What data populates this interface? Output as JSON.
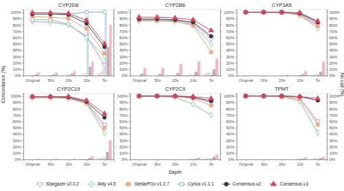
{
  "chart_data": [
    {
      "type": "line",
      "title": "CYP2D6",
      "x_label": "Depth",
      "y_label": "Concordance (%)",
      "y2_label": "No call (%)",
      "legend": "bottom",
      "categories": [
        "Original",
        "30x",
        "20x",
        "10x",
        "5x"
      ],
      "ylim": [
        0,
        104
      ],
      "yticks": [
        {
          "value": 0,
          "label": "0%"
        },
        {
          "value": 10,
          "label": "10%"
        },
        {
          "value": 20,
          "label": "20%"
        },
        {
          "value": 30,
          "label": "30%"
        },
        {
          "value": 40,
          "label": "40%"
        },
        {
          "value": 50,
          "label": "50%"
        },
        {
          "value": 60,
          "label": "60%"
        },
        {
          "value": 70,
          "label": "70%"
        },
        {
          "value": 80,
          "label": "80%"
        },
        {
          "value": 90,
          "label": "90%"
        },
        {
          "value": 100,
          "label": "100%"
        }
      ],
      "y2lim": [
        0,
        104
      ],
      "y2ticks": [
        0,
        10,
        20,
        30,
        40,
        50,
        60,
        70,
        80,
        90,
        100
      ],
      "series": [
        {
          "name": "Stargazer v2.0.2",
          "color": "#b98fd8",
          "marker": "triangle-down-open",
          "values": [
            85,
            84,
            80,
            62,
            17
          ],
          "no_call": [
            0,
            0,
            0,
            1,
            3
          ]
        },
        {
          "name": "Aldy v4.5",
          "color": "#72c99e",
          "marker": "diamond-open",
          "values": [
            88,
            88,
            81,
            60,
            30
          ],
          "no_call": [
            0,
            0,
            0,
            2,
            6
          ]
        },
        {
          "name": "StellarPGx v1.2.7",
          "color": "#f2a07b",
          "marker": "x",
          "values": [
            93,
            92,
            90,
            74,
            35
          ],
          "no_call": [
            1,
            1,
            2,
            4,
            12
          ]
        },
        {
          "name": "Cyrius v1.1.1",
          "color": "#74a9cf",
          "marker": "square-open",
          "values": [
            97,
            97,
            97,
            100,
            100
          ],
          "no_call": [
            1,
            1,
            2,
            95,
            98
          ]
        },
        {
          "name": "Consensus ≥2",
          "color": "#3b3b3b",
          "marker": "circle",
          "values": [
            97,
            97,
            96,
            82,
            45
          ],
          "no_call": [
            2,
            2,
            3,
            14,
            45
          ]
        },
        {
          "name": "Consensus ≥3",
          "color": "#e0405e",
          "marker": "triangle",
          "values": [
            99,
            99,
            98,
            87,
            50
          ],
          "no_call": [
            5,
            5,
            7,
            22,
            80
          ]
        }
      ]
    },
    {
      "type": "line",
      "title": "CYP2B6",
      "categories": [
        "Original",
        "30x",
        "20x",
        "10x",
        "5x"
      ],
      "ylim": [
        0,
        104
      ],
      "yticks": [
        {
          "value": 0,
          "label": "0%"
        },
        {
          "value": 10,
          "label": "10%"
        },
        {
          "value": 20,
          "label": "20%"
        },
        {
          "value": 30,
          "label": "30%"
        },
        {
          "value": 40,
          "label": "40%"
        },
        {
          "value": 50,
          "label": "50%"
        },
        {
          "value": 60,
          "label": "60%"
        },
        {
          "value": 70,
          "label": "70%"
        },
        {
          "value": 80,
          "label": "80%"
        },
        {
          "value": 90,
          "label": "90%"
        },
        {
          "value": 100,
          "label": "100%"
        }
      ],
      "y2lim": [
        0,
        104
      ],
      "y2ticks": [
        0,
        10,
        20,
        30,
        40,
        50,
        60,
        70,
        80,
        90,
        100
      ],
      "series": [
        {
          "name": "Stargazer v2.0.2",
          "color": "#b98fd8",
          "marker": "triangle-down-open",
          "values": [
            88,
            88,
            87,
            82,
            58
          ],
          "no_call": [
            0,
            0,
            0,
            1,
            3
          ]
        },
        {
          "name": "Aldy v4.5",
          "color": "#72c99e",
          "marker": "diamond-open",
          "values": [
            86,
            86,
            85,
            80,
            50
          ],
          "no_call": [
            0,
            0,
            1,
            2,
            5
          ]
        },
        {
          "name": "StellarPGx v1.2.7",
          "color": "#f2a07b",
          "marker": "x",
          "values": [
            87,
            87,
            86,
            79,
            37
          ],
          "no_call": [
            0,
            0,
            1,
            2,
            4
          ]
        },
        {
          "name": "Consensus ≥2",
          "color": "#3b3b3b",
          "marker": "circle",
          "values": [
            89,
            89,
            88,
            84,
            62
          ],
          "no_call": [
            3,
            3,
            4,
            6,
            10
          ]
        },
        {
          "name": "Consensus ≥3",
          "color": "#e0405e",
          "marker": "triangle",
          "values": [
            92,
            92,
            91,
            88,
            71
          ],
          "no_call": [
            12,
            12,
            18,
            22,
            27
          ]
        }
      ]
    },
    {
      "type": "line",
      "title": "CYP3A5",
      "categories": [
        "Original",
        "30x",
        "20x",
        "10x",
        "5x"
      ],
      "ylim": [
        0,
        104
      ],
      "yticks": [
        {
          "value": 0,
          "label": "0%"
        },
        {
          "value": 10,
          "label": "10%"
        },
        {
          "value": 20,
          "label": "20%"
        },
        {
          "value": 30,
          "label": "30%"
        },
        {
          "value": 40,
          "label": "40%"
        },
        {
          "value": 50,
          "label": "50%"
        },
        {
          "value": 60,
          "label": "60%"
        },
        {
          "value": 70,
          "label": "70%"
        },
        {
          "value": 80,
          "label": "80%"
        },
        {
          "value": 90,
          "label": "90%"
        },
        {
          "value": 100,
          "label": "100%"
        }
      ],
      "y2lim": [
        0,
        104
      ],
      "y2ticks": [
        {
          "value": 0,
          "label": "0%"
        },
        {
          "value": 10,
          "label": "10%"
        },
        {
          "value": 20,
          "label": "20%"
        },
        {
          "value": 30,
          "label": "30%"
        },
        {
          "value": 40,
          "label": "40%"
        },
        {
          "value": 50,
          "label": "50%"
        },
        {
          "value": 60,
          "label": "60%"
        },
        {
          "value": 70,
          "label": "70%"
        },
        {
          "value": 80,
          "label": "80%"
        },
        {
          "value": 90,
          "label": "90%"
        },
        {
          "value": 100,
          "label": "100%"
        }
      ],
      "series": [
        {
          "name": "Stargazer v2.0.2",
          "color": "#b98fd8",
          "marker": "triangle-down-open",
          "values": [
            100,
            100,
            100,
            97,
            80
          ],
          "no_call": [
            0,
            0,
            0,
            0,
            1
          ]
        },
        {
          "name": "Aldy v4.5",
          "color": "#72c99e",
          "marker": "diamond-open",
          "values": [
            100,
            100,
            100,
            95,
            75
          ],
          "no_call": [
            0,
            0,
            0,
            1,
            2
          ]
        },
        {
          "name": "StellarPGx v1.2.7",
          "color": "#f2a07b",
          "marker": "x",
          "values": [
            100,
            100,
            99,
            96,
            78
          ],
          "no_call": [
            0,
            0,
            0,
            1,
            3
          ]
        },
        {
          "name": "Consensus ≥2",
          "color": "#3b3b3b",
          "marker": "circle",
          "values": [
            100,
            100,
            100,
            98,
            84
          ],
          "no_call": [
            0,
            0,
            0,
            2,
            6
          ]
        },
        {
          "name": "Consensus ≥3",
          "color": "#e0405e",
          "marker": "triangle",
          "values": [
            100,
            100,
            100,
            99,
            86
          ],
          "no_call": [
            0,
            0,
            1,
            7,
            22
          ]
        }
      ]
    },
    {
      "type": "line",
      "title": "CYP2C19",
      "categories": [
        "Original",
        "30x",
        "20x",
        "10x",
        "5x"
      ],
      "ylim": [
        0,
        104
      ],
      "yticks": [
        {
          "value": 0,
          "label": "0%"
        },
        {
          "value": 10,
          "label": "10%"
        },
        {
          "value": 20,
          "label": "20%"
        },
        {
          "value": 30,
          "label": "30%"
        },
        {
          "value": 40,
          "label": "40%"
        },
        {
          "value": 50,
          "label": "50%"
        },
        {
          "value": 60,
          "label": "60%"
        },
        {
          "value": 70,
          "label": "70%"
        },
        {
          "value": 80,
          "label": "80%"
        },
        {
          "value": 90,
          "label": "90%"
        },
        {
          "value": 100,
          "label": "100%"
        }
      ],
      "y2lim": [
        0,
        104
      ],
      "y2ticks": [
        0,
        10,
        20,
        30,
        40,
        50,
        60,
        70,
        80,
        90,
        100
      ],
      "series": [
        {
          "name": "Stargazer v2.0.2",
          "color": "#b98fd8",
          "marker": "triangle-down-open",
          "values": [
            98,
            98,
            97,
            90,
            55
          ],
          "no_call": [
            0,
            0,
            0,
            1,
            2
          ]
        },
        {
          "name": "Aldy v4.5",
          "color": "#72c99e",
          "marker": "diamond-open",
          "values": [
            97,
            97,
            96,
            88,
            42
          ],
          "no_call": [
            0,
            0,
            0,
            1,
            3
          ]
        },
        {
          "name": "StellarPGx v1.2.7",
          "color": "#f2a07b",
          "marker": "x",
          "values": [
            98,
            98,
            97,
            89,
            50
          ],
          "no_call": [
            0,
            0,
            0,
            1,
            4
          ]
        },
        {
          "name": "Consensus ≥2",
          "color": "#3b3b3b",
          "marker": "circle",
          "values": [
            99,
            99,
            98,
            91,
            66
          ],
          "no_call": [
            0,
            0,
            0,
            2,
            12
          ]
        },
        {
          "name": "Consensus ≥3",
          "color": "#e0405e",
          "marker": "triangle",
          "values": [
            99,
            99,
            99,
            93,
            72
          ],
          "no_call": [
            1,
            1,
            1,
            5,
            30
          ]
        }
      ]
    },
    {
      "type": "line",
      "title": "CYP2C9",
      "categories": [
        "Original",
        "30x",
        "20x",
        "10x",
        "5x"
      ],
      "ylim": [
        0,
        104
      ],
      "yticks": [
        {
          "value": 0,
          "label": "0%"
        },
        {
          "value": 10,
          "label": "10%"
        },
        {
          "value": 20,
          "label": "20%"
        },
        {
          "value": 30,
          "label": "30%"
        },
        {
          "value": 40,
          "label": "40%"
        },
        {
          "value": 50,
          "label": "50%"
        },
        {
          "value": 60,
          "label": "60%"
        },
        {
          "value": 70,
          "label": "70%"
        },
        {
          "value": 80,
          "label": "80%"
        },
        {
          "value": 90,
          "label": "90%"
        },
        {
          "value": 100,
          "label": "100%"
        }
      ],
      "y2lim": [
        0,
        104
      ],
      "y2ticks": [
        0,
        10,
        20,
        30,
        40,
        50,
        60,
        70,
        80,
        90,
        100
      ],
      "series": [
        {
          "name": "Stargazer v2.0.2",
          "color": "#b98fd8",
          "marker": "triangle-down-open",
          "values": [
            100,
            100,
            99,
            97,
            90
          ],
          "no_call": [
            0,
            0,
            0,
            0,
            1
          ]
        },
        {
          "name": "Aldy v4.5",
          "color": "#72c99e",
          "marker": "diamond-open",
          "values": [
            99,
            99,
            98,
            87,
            70
          ],
          "no_call": [
            0,
            0,
            0,
            1,
            2
          ]
        },
        {
          "name": "StellarPGx v1.2.7",
          "color": "#f2a07b",
          "marker": "x",
          "values": [
            100,
            100,
            99,
            96,
            85
          ],
          "no_call": [
            0,
            0,
            0,
            1,
            2
          ]
        },
        {
          "name": "Consensus ≥2",
          "color": "#3b3b3b",
          "marker": "circle",
          "values": [
            100,
            100,
            100,
            98,
            92
          ],
          "no_call": [
            0,
            0,
            0,
            1,
            4
          ]
        },
        {
          "name": "Consensus ≥3",
          "color": "#e0405e",
          "marker": "triangle",
          "values": [
            100,
            100,
            100,
            99,
            96
          ],
          "no_call": [
            0,
            0,
            0,
            3,
            8
          ]
        }
      ]
    },
    {
      "type": "line",
      "title": "TPMT",
      "categories": [
        "Original",
        "30x",
        "20x",
        "10x",
        "5x"
      ],
      "ylim": [
        0,
        104
      ],
      "yticks": [
        {
          "value": 0,
          "label": "0%"
        },
        {
          "value": 10,
          "label": "10%"
        },
        {
          "value": 20,
          "label": "20%"
        },
        {
          "value": 30,
          "label": "30%"
        },
        {
          "value": 40,
          "label": "40%"
        },
        {
          "value": 50,
          "label": "50%"
        },
        {
          "value": 60,
          "label": "60%"
        },
        {
          "value": 70,
          "label": "70%"
        },
        {
          "value": 80,
          "label": "80%"
        },
        {
          "value": 90,
          "label": "90%"
        },
        {
          "value": 100,
          "label": "100%"
        }
      ],
      "y2lim": [
        0,
        104
      ],
      "y2ticks": [
        {
          "value": 0,
          "label": "0%"
        },
        {
          "value": 10,
          "label": "10%"
        },
        {
          "value": 20,
          "label": "20%"
        },
        {
          "value": 30,
          "label": "30%"
        },
        {
          "value": 40,
          "label": "40%"
        },
        {
          "value": 50,
          "label": "50%"
        },
        {
          "value": 60,
          "label": "60%"
        },
        {
          "value": 70,
          "label": "70%"
        },
        {
          "value": 80,
          "label": "80%"
        },
        {
          "value": 90,
          "label": "90%"
        },
        {
          "value": 100,
          "label": "100%"
        }
      ],
      "series": [
        {
          "name": "Stargazer v2.0.2",
          "color": "#b98fd8",
          "marker": "triangle-down-open",
          "values": [
            100,
            100,
            100,
            97,
            60
          ],
          "no_call": [
            0,
            0,
            0,
            0,
            1
          ]
        },
        {
          "name": "Aldy v4.5",
          "color": "#72c99e",
          "marker": "diamond-open",
          "values": [
            100,
            100,
            99,
            92,
            42
          ],
          "no_call": [
            0,
            0,
            0,
            1,
            2
          ]
        },
        {
          "name": "StellarPGx v1.2.7",
          "color": "#f2a07b",
          "marker": "x",
          "values": [
            100,
            100,
            99,
            95,
            55
          ],
          "no_call": [
            0,
            0,
            0,
            1,
            2
          ]
        },
        {
          "name": "Consensus ≥2",
          "color": "#3b3b3b",
          "marker": "circle",
          "values": [
            100,
            100,
            100,
            99,
            93
          ],
          "no_call": [
            0,
            0,
            0,
            1,
            2
          ]
        },
        {
          "name": "Consensus ≥3",
          "color": "#e0405e",
          "marker": "triangle",
          "values": [
            100,
            100,
            100,
            99,
            96
          ],
          "no_call": [
            0,
            0,
            0,
            3,
            4
          ]
        }
      ]
    }
  ]
}
